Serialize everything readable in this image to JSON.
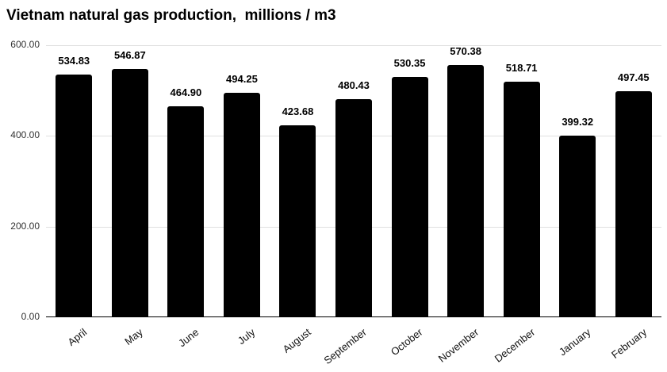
{
  "chart_data": {
    "type": "bar",
    "title": "Vietnam natural gas production,  millions / m3",
    "categories": [
      "April",
      "May",
      "June",
      "July",
      "August",
      "September",
      "October",
      "November",
      "December",
      "January",
      "February"
    ],
    "values": [
      534.83,
      546.87,
      464.9,
      494.25,
      423.68,
      480.43,
      530.35,
      570.38,
      518.71,
      399.32,
      497.45
    ],
    "value_labels": [
      "534.83",
      "546.87",
      "464.90",
      "494.25",
      "423.68",
      "480.43",
      "530.35",
      "570.38",
      "518.71",
      "399.32",
      "497.45"
    ],
    "xlabel": "",
    "ylabel": "",
    "ylim": [
      0,
      600
    ],
    "yticks": [
      0,
      200,
      400,
      600
    ],
    "ytick_labels": [
      "0.00",
      "200.00",
      "400.00",
      "600.00"
    ],
    "legend_position": "none",
    "grid": "horizontal",
    "colors": {
      "bar": "#000000",
      "gridline": "#e0e0e0",
      "axis_line": "#000000",
      "title_text": "#000000",
      "value_label_text": "#000000",
      "tick_text": "#333333",
      "background": "#ffffff"
    }
  }
}
